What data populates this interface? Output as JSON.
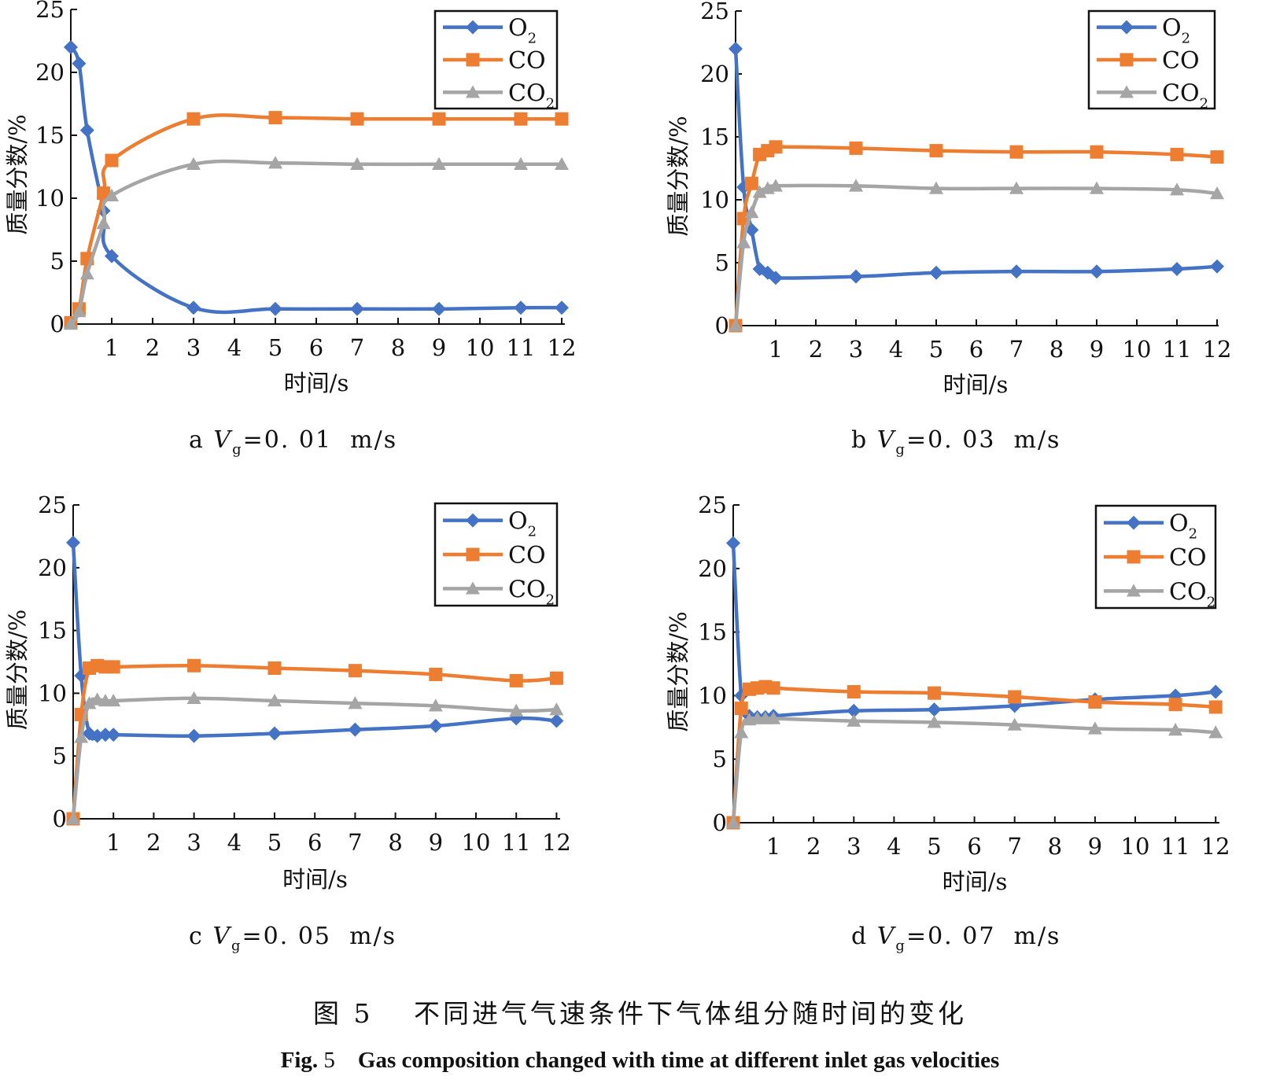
{
  "legend_labels": {
    "o2": "O",
    "o2_sub": "2",
    "co": "CO",
    "co2": "CO",
    "co2_sub": "2"
  },
  "colors": {
    "o2": "#4472C4",
    "co": "#ED7D31",
    "co2": "#A5A5A5"
  },
  "chart_data": [
    {
      "type": "line",
      "panel_caption": {
        "prefix": "a ",
        "var": "V",
        "sub": "g",
        "value": "=0. 01  m/s"
      },
      "xlabel": "时间/s",
      "ylabel": "质量分数/%",
      "xlim": [
        0,
        12
      ],
      "ylim": [
        0,
        25
      ],
      "x_ticks": [
        1,
        2,
        3,
        4,
        5,
        6,
        7,
        8,
        9,
        10,
        11,
        12
      ],
      "y_ticks": [
        0,
        5,
        10,
        15,
        20,
        25
      ],
      "legend_position": "top-right",
      "series": [
        {
          "key": "o2",
          "x": [
            0,
            0.2,
            0.4,
            0.8,
            1,
            3,
            5,
            7,
            9,
            11,
            12
          ],
          "y": [
            22,
            20.7,
            15.4,
            9,
            5.4,
            1.3,
            1.2,
            1.2,
            1.2,
            1.3,
            1.3
          ]
        },
        {
          "key": "co",
          "x": [
            0,
            0.2,
            0.4,
            0.8,
            1,
            3,
            5,
            7,
            9,
            11,
            12
          ],
          "y": [
            0.1,
            1.2,
            5.2,
            10.4,
            13,
            16.3,
            16.4,
            16.3,
            16.3,
            16.3,
            16.3
          ]
        },
        {
          "key": "co2",
          "x": [
            0,
            0.2,
            0.4,
            0.8,
            1,
            3,
            5,
            7,
            9,
            11,
            12
          ],
          "y": [
            0,
            1,
            4,
            8,
            10.2,
            12.7,
            12.8,
            12.7,
            12.7,
            12.7,
            12.7
          ]
        }
      ]
    },
    {
      "type": "line",
      "panel_caption": {
        "prefix": "b ",
        "var": "V",
        "sub": "g",
        "value": "=0. 03  m/s"
      },
      "xlabel": "时间/s",
      "ylabel": "质量分数/%",
      "xlim": [
        0,
        12
      ],
      "ylim": [
        0,
        25
      ],
      "x_ticks": [
        1,
        2,
        3,
        4,
        5,
        6,
        7,
        8,
        9,
        10,
        11,
        12
      ],
      "y_ticks": [
        0,
        5,
        10,
        15,
        20,
        25
      ],
      "legend_position": "top-right",
      "series": [
        {
          "key": "o2",
          "x": [
            0,
            0.2,
            0.4,
            0.6,
            0.8,
            1,
            3,
            5,
            7,
            9,
            11,
            12
          ],
          "y": [
            22,
            11,
            7.6,
            4.5,
            4.2,
            3.8,
            3.9,
            4.2,
            4.3,
            4.3,
            4.5,
            4.7
          ]
        },
        {
          "key": "co",
          "x": [
            0,
            0.2,
            0.4,
            0.6,
            0.8,
            1,
            3,
            5,
            7,
            9,
            11,
            12
          ],
          "y": [
            0,
            8.5,
            11.3,
            13.6,
            13.9,
            14.2,
            14.1,
            13.9,
            13.8,
            13.8,
            13.6,
            13.4
          ]
        },
        {
          "key": "co2",
          "x": [
            0,
            0.2,
            0.4,
            0.6,
            0.8,
            1,
            3,
            5,
            7,
            9,
            11,
            12
          ],
          "y": [
            0,
            6.6,
            9,
            10.6,
            10.9,
            11.1,
            11.1,
            10.9,
            10.9,
            10.9,
            10.8,
            10.5
          ]
        }
      ]
    },
    {
      "type": "line",
      "panel_caption": {
        "prefix": "c ",
        "var": "V",
        "sub": "g",
        "value": "=0. 05  m/s"
      },
      "xlabel": "时间/s",
      "ylabel": "质量分数/%",
      "xlim": [
        0,
        12
      ],
      "ylim": [
        0,
        25
      ],
      "x_ticks": [
        1,
        2,
        3,
        4,
        5,
        6,
        7,
        8,
        9,
        10,
        11,
        12
      ],
      "y_ticks": [
        0,
        5,
        10,
        15,
        20,
        25
      ],
      "legend_position": "top-right",
      "series": [
        {
          "key": "o2",
          "x": [
            0,
            0.2,
            0.4,
            0.6,
            0.8,
            1,
            3,
            5,
            7,
            9,
            11,
            12
          ],
          "y": [
            22,
            11.4,
            6.8,
            6.6,
            6.7,
            6.7,
            6.6,
            6.8,
            7.1,
            7.4,
            8,
            7.8
          ]
        },
        {
          "key": "co",
          "x": [
            0,
            0.2,
            0.4,
            0.6,
            0.8,
            1,
            3,
            5,
            7,
            9,
            11,
            12
          ],
          "y": [
            0,
            8.3,
            12,
            12.2,
            12.1,
            12.1,
            12.2,
            12,
            11.8,
            11.5,
            11,
            11.2
          ]
        },
        {
          "key": "co2",
          "x": [
            0,
            0.2,
            0.4,
            0.6,
            0.8,
            1,
            3,
            5,
            7,
            9,
            11,
            12
          ],
          "y": [
            0,
            6.5,
            9.2,
            9.5,
            9.4,
            9.4,
            9.6,
            9.4,
            9.2,
            9,
            8.6,
            8.7
          ]
        }
      ]
    },
    {
      "type": "line",
      "panel_caption": {
        "prefix": "d ",
        "var": "V",
        "sub": "g",
        "value": "=0. 07  m/s"
      },
      "xlabel": "时间/s",
      "ylabel": "质量分数/%",
      "xlim": [
        0,
        12
      ],
      "ylim": [
        0,
        25
      ],
      "x_ticks": [
        1,
        2,
        3,
        4,
        5,
        6,
        7,
        8,
        9,
        10,
        11,
        12
      ],
      "y_ticks": [
        0,
        5,
        10,
        15,
        20,
        25
      ],
      "legend_position": "top-right",
      "series": [
        {
          "key": "o2",
          "x": [
            0,
            0.2,
            0.4,
            0.6,
            0.8,
            1,
            3,
            5,
            7,
            9,
            11,
            12
          ],
          "y": [
            22,
            10,
            8.4,
            8.3,
            8.3,
            8.4,
            8.8,
            8.9,
            9.2,
            9.7,
            10,
            10.3
          ]
        },
        {
          "key": "co",
          "x": [
            0,
            0.2,
            0.4,
            0.6,
            0.8,
            1,
            3,
            5,
            7,
            9,
            11,
            12
          ],
          "y": [
            0,
            9,
            10.5,
            10.6,
            10.7,
            10.6,
            10.3,
            10.2,
            9.9,
            9.5,
            9.3,
            9.1
          ]
        },
        {
          "key": "co2",
          "x": [
            0,
            0.2,
            0.4,
            0.6,
            0.8,
            1,
            3,
            5,
            7,
            9,
            11,
            12
          ],
          "y": [
            0,
            7.1,
            8.1,
            8.2,
            8.2,
            8.2,
            8,
            7.9,
            7.7,
            7.4,
            7.3,
            7.1
          ]
        }
      ]
    }
  ],
  "figure_caption_cn": "图 5　 不同进气气速条件下气体组分随时间的变化",
  "figure_caption_en": {
    "label": "Fig.",
    "num": " 5",
    "text": "    Gas composition changed with time at different inlet gas velocities"
  }
}
